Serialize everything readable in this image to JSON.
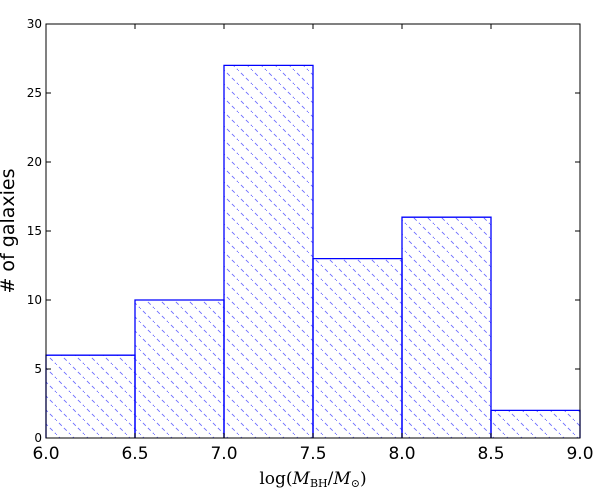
{
  "chart_data": {
    "type": "bar",
    "bins": [
      {
        "x0": 6.0,
        "x1": 6.5,
        "count": 6
      },
      {
        "x0": 6.5,
        "x1": 7.0,
        "count": 10
      },
      {
        "x0": 7.0,
        "x1": 7.5,
        "count": 27
      },
      {
        "x0": 7.5,
        "x1": 8.0,
        "count": 13
      },
      {
        "x0": 8.0,
        "x1": 8.5,
        "count": 16
      },
      {
        "x0": 8.5,
        "x1": 9.0,
        "count": 2
      }
    ],
    "xlim": [
      6.0,
      9.0
    ],
    "ylim": [
      0,
      30
    ],
    "xticks": [
      "6.0",
      "6.5",
      "7.0",
      "7.5",
      "8.0",
      "8.5",
      "9.0"
    ],
    "yticks": [
      "0",
      "5",
      "10",
      "15",
      "20",
      "25",
      "30"
    ],
    "ylabel": "# of galaxies",
    "xlabel": {
      "prefix": "log(",
      "m1": "M",
      "m1_sub": "BH",
      "slash": "/",
      "m2": "M",
      "m2_sub": "⊙",
      "suffix": ")"
    },
    "bar_color": "#0000ff",
    "hatch_color": "#6b6bff",
    "grid": false
  }
}
